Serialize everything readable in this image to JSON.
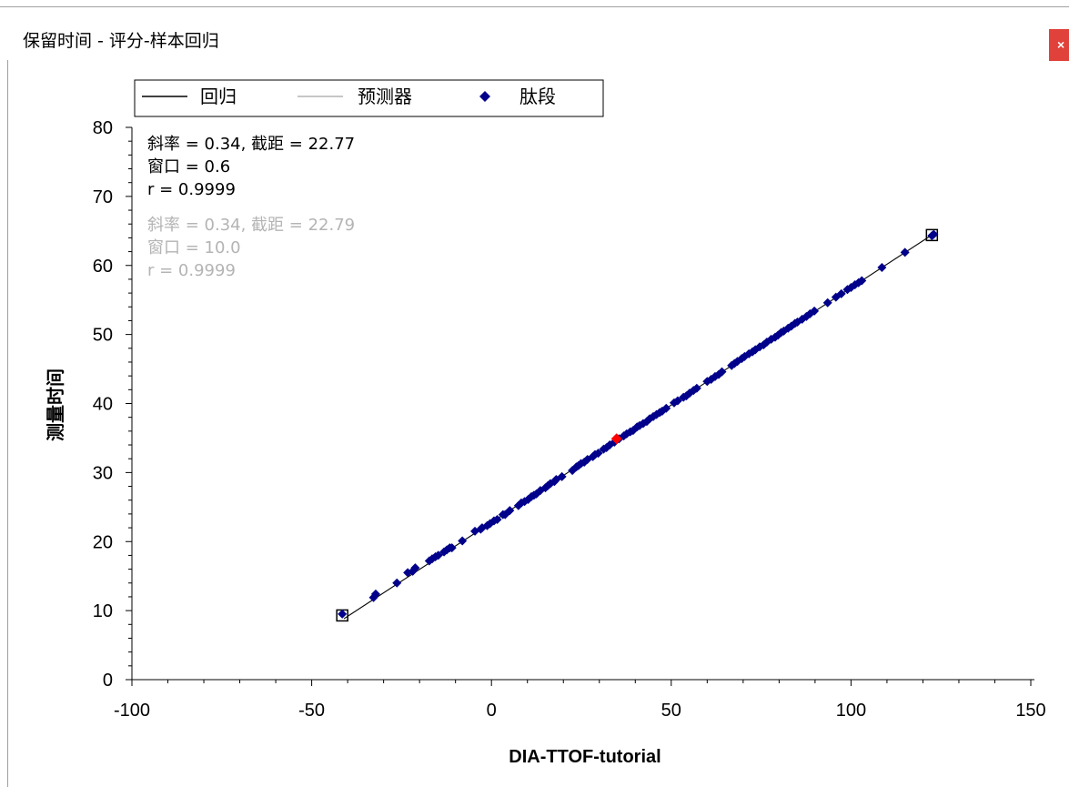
{
  "window": {
    "title": "保留时间 - 评分-样本回归",
    "close_glyph": "×"
  },
  "chart_data": {
    "type": "scatter",
    "xlabel": "DIA-TTOF-tutorial",
    "ylabel": "测量时间",
    "xlim": [
      -100,
      150
    ],
    "ylim": [
      0,
      80
    ],
    "x_ticks": [
      -100,
      -50,
      0,
      50,
      100,
      150
    ],
    "y_ticks": [
      0,
      10,
      20,
      30,
      40,
      50,
      60,
      70,
      80
    ],
    "x_tick_labels": [
      "-100",
      "-50",
      "0",
      "50",
      "100",
      "150"
    ],
    "y_tick_labels": [
      "0",
      "10",
      "20",
      "30",
      "40",
      "50",
      "60",
      "70",
      "80"
    ],
    "grid": false,
    "legend": {
      "position": "top",
      "entries": [
        {
          "label": "回归",
          "kind": "line",
          "color": "#000000"
        },
        {
          "label": "预测器",
          "kind": "line",
          "color": "#b4b4b4"
        },
        {
          "label": "肽段",
          "kind": "marker",
          "color": "#00008b"
        }
      ]
    },
    "annotations": {
      "regression": [
        "斜率 = 0.34, 截距 = 22.77",
        "窗口 = 0.6",
        "r = 0.9999"
      ],
      "predictor": [
        "斜率 = 0.34, 截距 = 22.79",
        "窗口 = 10.0",
        "r = 0.9999"
      ]
    },
    "regression_line": {
      "slope": 0.34,
      "intercept": 22.77,
      "x_range": [
        -41,
        123
      ],
      "color": "#000000"
    },
    "predictor_line": {
      "slope": 0.34,
      "intercept": 22.79,
      "x_range": [
        -41,
        123
      ],
      "color": "#b4b4b4"
    },
    "series": [
      {
        "name": "肽段",
        "color": "#00008b",
        "x": [
          -41.5,
          -32.8,
          -32.2,
          -26.3,
          -23.3,
          -21.9,
          -21.2,
          -17.3,
          -16.5,
          -15.6,
          -14.8,
          -13.2,
          -12.4,
          -11.6,
          -11.0,
          -8.1,
          -4.6,
          -3.0,
          -2.6,
          -1.2,
          -0.4,
          0.7,
          1.6,
          3.2,
          3.8,
          5.1,
          7.5,
          8.3,
          9.2,
          10.2,
          11.1,
          11.8,
          12.5,
          13.6,
          15.0,
          15.7,
          16.4,
          17.5,
          18.0,
          19.6,
          22.5,
          23.6,
          24.2,
          24.9,
          25.8,
          26.7,
          28.2,
          28.8,
          29.7,
          31.2,
          32.0,
          32.9,
          34.2,
          35.5,
          36.8,
          37.6,
          38.6,
          39.4,
          40.5,
          41.2,
          42.2,
          43.2,
          44.0,
          45.0,
          45.9,
          46.8,
          47.5,
          48.6,
          50.8,
          51.8,
          53.4,
          54.2,
          55.1,
          56.2,
          57.1,
          60.0,
          61.1,
          62.2,
          63.2,
          64.1,
          66.8,
          67.6,
          68.4,
          69.6,
          70.4,
          71.6,
          72.6,
          73.4,
          74.6,
          75.7,
          76.6,
          77.8,
          78.9,
          79.7,
          80.6,
          81.3,
          82.5,
          83.4,
          84.4,
          85.1,
          86.4,
          87.6,
          88.6,
          89.8,
          93.5,
          95.8,
          97.3,
          99.0,
          100.0,
          101.1,
          102.1,
          103.0,
          108.6,
          115.0,
          122.5,
          123.0
        ],
        "y": [
          9.5,
          11.9,
          12.4,
          14.0,
          15.5,
          15.7,
          16.2,
          17.2,
          17.5,
          17.8,
          18.0,
          18.5,
          18.8,
          19.1,
          19.1,
          20.1,
          21.5,
          21.8,
          22.0,
          22.3,
          22.6,
          23.0,
          23.2,
          23.9,
          23.9,
          24.5,
          25.2,
          25.6,
          25.8,
          26.1,
          26.5,
          26.7,
          26.9,
          27.4,
          27.8,
          28.1,
          28.4,
          28.7,
          29.0,
          29.4,
          30.3,
          30.8,
          31.0,
          31.3,
          31.5,
          31.9,
          32.3,
          32.6,
          32.8,
          33.4,
          33.6,
          34.0,
          34.4,
          34.9,
          35.3,
          35.6,
          35.9,
          36.1,
          36.6,
          36.8,
          37.1,
          37.4,
          37.8,
          38.1,
          38.4,
          38.7,
          38.9,
          39.3,
          40.1,
          40.4,
          40.9,
          41.1,
          41.5,
          41.9,
          42.2,
          43.2,
          43.5,
          43.9,
          44.2,
          44.6,
          45.5,
          45.8,
          46.1,
          46.5,
          46.8,
          47.2,
          47.5,
          47.8,
          48.2,
          48.5,
          48.9,
          49.3,
          49.6,
          49.9,
          50.3,
          50.5,
          50.9,
          51.2,
          51.6,
          51.8,
          52.2,
          52.6,
          53.0,
          53.4,
          54.6,
          55.4,
          55.9,
          56.5,
          56.8,
          57.2,
          57.5,
          57.8,
          59.7,
          61.9,
          64.3,
          64.5
        ]
      },
      {
        "name": "highlighted",
        "color": "#ff0000",
        "x": [
          34.8
        ],
        "y": [
          34.9
        ]
      }
    ],
    "boxed_points": [
      {
        "x": -41.5,
        "y": 9.3
      },
      {
        "x": 122.5,
        "y": 64.4
      }
    ]
  }
}
